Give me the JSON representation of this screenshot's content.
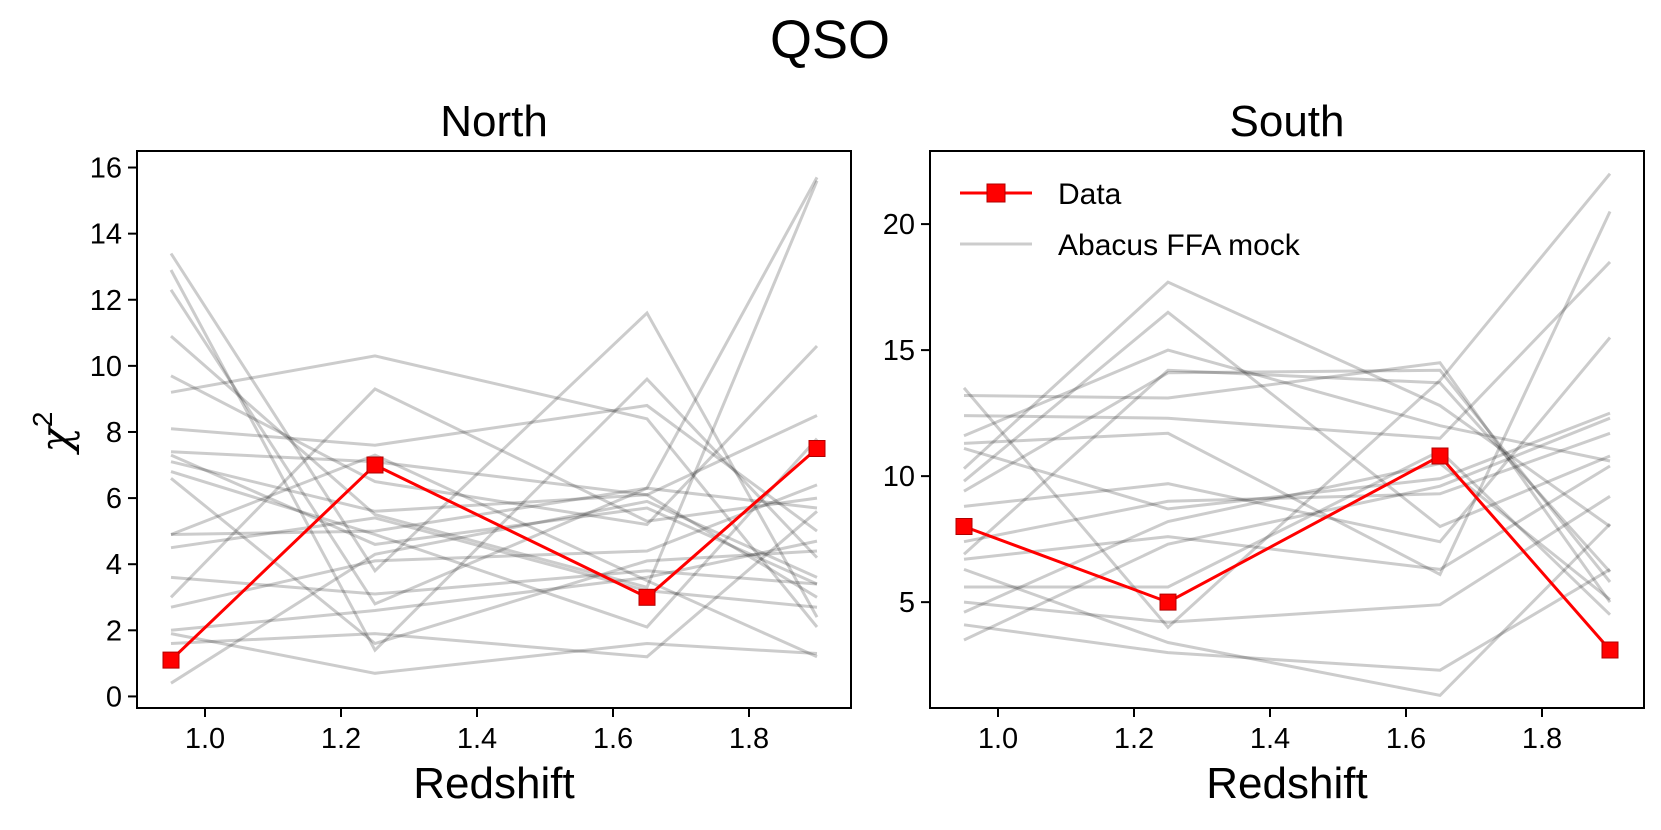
{
  "title": "QSO",
  "chart_data": [
    {
      "type": "line",
      "title": "North",
      "xlabel": "Redshift",
      "ylabel": "χ",
      "ylabel_sup": "2",
      "x": [
        0.95,
        1.25,
        1.65,
        1.9
      ],
      "xlim": [
        0.9,
        1.95
      ],
      "ylim": [
        -0.35,
        16.5
      ],
      "xticks": [
        1.0,
        1.2,
        1.4,
        1.6,
        1.8
      ],
      "xtick_labels": [
        "1.0",
        "1.2",
        "1.4",
        "1.6",
        "1.8"
      ],
      "yticks": [
        0,
        2,
        4,
        6,
        8,
        10,
        12,
        14,
        16
      ],
      "ytick_labels": [
        "0",
        "2",
        "4",
        "6",
        "8",
        "10",
        "12",
        "14",
        "16"
      ],
      "data_series": {
        "name": "Data",
        "color": "#ff0000",
        "values": [
          1.1,
          7.0,
          3.0,
          7.5
        ]
      },
      "mock_series_name": "Abacus FFA mock",
      "mock_color": "#b3b3b3",
      "mock_values": [
        [
          13.4,
          3.8,
          11.6,
          2.4
        ],
        [
          12.9,
          1.4,
          9.6,
          4.2
        ],
        [
          12.3,
          2.8,
          6.3,
          15.7
        ],
        [
          10.9,
          5.5,
          3.3,
          15.6
        ],
        [
          9.7,
          6.5,
          5.2,
          10.6
        ],
        [
          9.2,
          10.3,
          8.4,
          2.1
        ],
        [
          8.1,
          7.6,
          8.8,
          5.0
        ],
        [
          7.4,
          7.1,
          6.1,
          8.5
        ],
        [
          7.3,
          4.6,
          5.7,
          3.4
        ],
        [
          7.1,
          5.6,
          6.1,
          3.0
        ],
        [
          6.8,
          4.9,
          2.1,
          7.8
        ],
        [
          6.6,
          1.6,
          4.1,
          4.4
        ],
        [
          4.9,
          5.0,
          6.3,
          5.7
        ],
        [
          4.9,
          7.3,
          3.5,
          1.2
        ],
        [
          4.5,
          5.4,
          3.2,
          2.7
        ],
        [
          3.6,
          3.1,
          3.8,
          3.4
        ],
        [
          3.0,
          9.3,
          5.3,
          6.0
        ],
        [
          2.7,
          4.1,
          4.4,
          6.4
        ],
        [
          2.0,
          2.6,
          3.6,
          4.7
        ],
        [
          1.9,
          0.7,
          1.6,
          1.3
        ],
        [
          1.6,
          1.9,
          1.2,
          5.6
        ],
        [
          0.4,
          4.3,
          5.9,
          3.6
        ]
      ]
    },
    {
      "type": "line",
      "title": "South",
      "xlabel": "Redshift",
      "ylabel": "",
      "x": [
        0.95,
        1.25,
        1.65,
        1.9
      ],
      "xlim": [
        0.9,
        1.95
      ],
      "ylim": [
        0.8,
        22.9
      ],
      "xticks": [
        1.0,
        1.2,
        1.4,
        1.6,
        1.8
      ],
      "xtick_labels": [
        "1.0",
        "1.2",
        "1.4",
        "1.6",
        "1.8"
      ],
      "yticks": [
        5,
        10,
        15,
        20
      ],
      "ytick_labels": [
        "5",
        "10",
        "15",
        "20"
      ],
      "data_series": {
        "name": "Data",
        "color": "#ff0000",
        "values": [
          8.0,
          5.0,
          10.8,
          3.1
        ]
      },
      "mock_series_name": "Abacus FFA mock",
      "mock_color": "#b3b3b3",
      "mock_values": [
        [
          13.5,
          4.0,
          13.8,
          22.0
        ],
        [
          13.2,
          13.1,
          14.5,
          5.0
        ],
        [
          12.4,
          12.3,
          11.5,
          18.5
        ],
        [
          11.6,
          15.0,
          12.0,
          10.6
        ],
        [
          11.3,
          11.7,
          6.1,
          20.5
        ],
        [
          11.1,
          8.7,
          9.9,
          12.5
        ],
        [
          10.3,
          17.7,
          12.8,
          8.0
        ],
        [
          9.8,
          16.5,
          8.0,
          10.8
        ],
        [
          9.4,
          14.1,
          14.2,
          5.8
        ],
        [
          8.8,
          9.7,
          7.4,
          15.5
        ],
        [
          7.4,
          9.0,
          9.3,
          11.7
        ],
        [
          6.9,
          14.2,
          13.7,
          6.2
        ],
        [
          6.7,
          7.6,
          6.3,
          10.4
        ],
        [
          6.3,
          3.4,
          1.3,
          8.1
        ],
        [
          5.6,
          5.6,
          11.0,
          4.5
        ],
        [
          5.0,
          4.2,
          4.9,
          9.2
        ],
        [
          4.6,
          8.2,
          10.5,
          5.1
        ],
        [
          4.1,
          3.0,
          2.3,
          6.3
        ],
        [
          3.5,
          7.3,
          9.6,
          12.3
        ]
      ]
    }
  ],
  "legend": [
    {
      "label": "Data",
      "kind": "data"
    },
    {
      "label": "Abacus FFA mock",
      "kind": "mock"
    }
  ]
}
